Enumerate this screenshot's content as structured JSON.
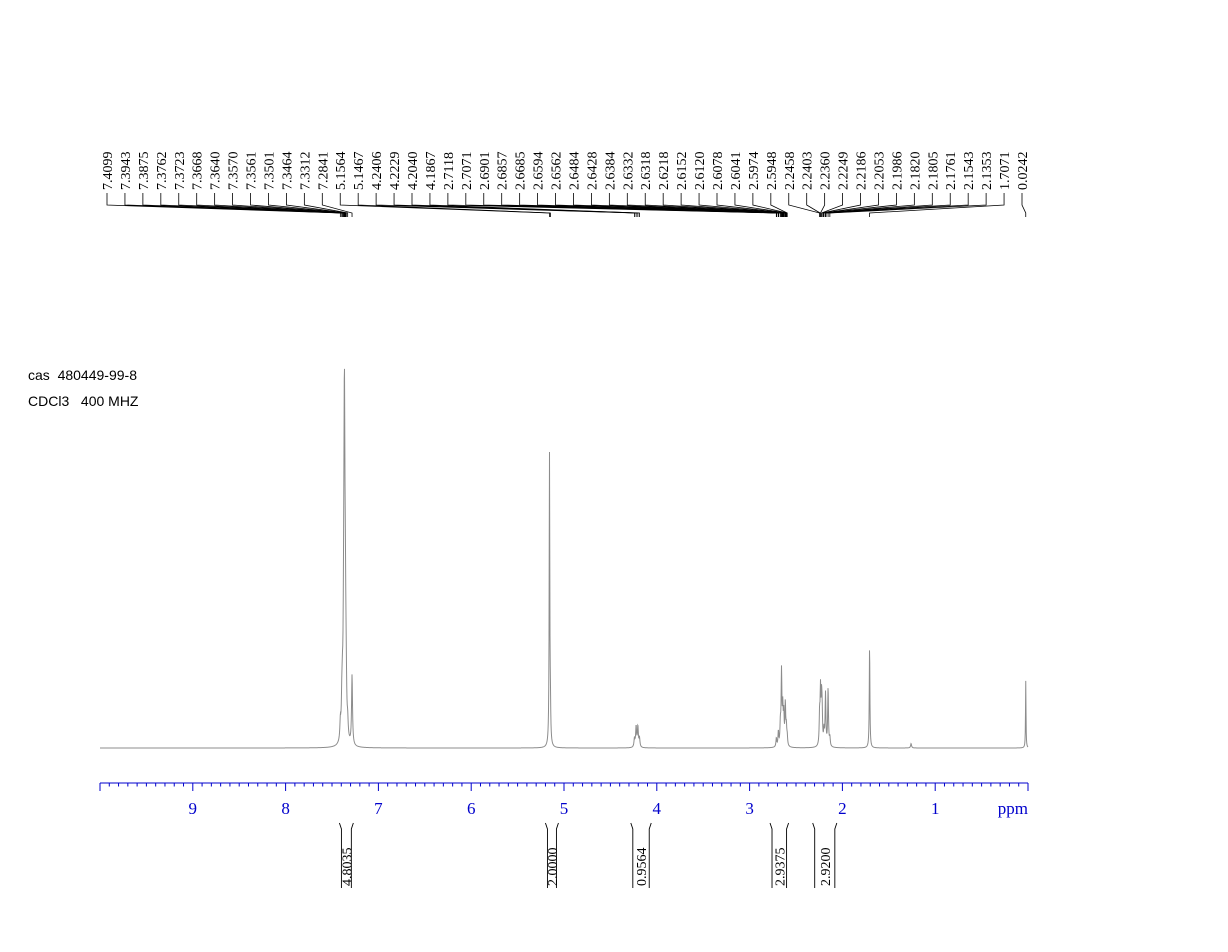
{
  "sample": {
    "cas_label": "cas",
    "cas_number": "480449-99-8",
    "solvent": "CDCl3",
    "frequency": "400 MHZ"
  },
  "chart_data": {
    "type": "line",
    "title": "",
    "xlabel": "ppm",
    "ylabel": "",
    "xlim": [
      10.0,
      0.0
    ],
    "x_reversed": true,
    "x_ticks": [
      9,
      8,
      7,
      6,
      5,
      4,
      3,
      2,
      1
    ],
    "grid": false,
    "colors": {
      "spectrum": "#8c8c8c",
      "axis": "#0000cc",
      "peak_labels": "#000000"
    },
    "peak_list": [
      "7.4099",
      "7.3943",
      "7.3875",
      "7.3762",
      "7.3723",
      "7.3668",
      "7.3640",
      "7.3570",
      "7.3561",
      "7.3501",
      "7.3464",
      "7.3312",
      "7.2841",
      "5.1564",
      "5.1467",
      "4.2406",
      "4.2229",
      "4.2040",
      "4.1867",
      "2.7118",
      "2.7071",
      "2.6901",
      "2.6857",
      "2.6685",
      "2.6594",
      "2.6562",
      "2.6484",
      "2.6428",
      "2.6384",
      "2.6332",
      "2.6318",
      "2.6218",
      "2.6152",
      "2.6120",
      "2.6078",
      "2.6041",
      "2.5974",
      "2.5948",
      "2.2458",
      "2.2403",
      "2.2360",
      "2.2249",
      "2.2186",
      "2.2053",
      "2.1986",
      "2.1820",
      "2.1805",
      "2.1761",
      "2.1543",
      "2.1353",
      "1.7071",
      "0.0242"
    ],
    "integrals": [
      {
        "from": 7.42,
        "to": 7.27,
        "value": "4.8035"
      },
      {
        "from": 5.2,
        "to": 5.06,
        "value": "2.0000"
      },
      {
        "from": 4.28,
        "to": 4.06,
        "value": "0.9564"
      },
      {
        "from": 2.78,
        "to": 2.58,
        "value": "2.9375"
      },
      {
        "from": 2.32,
        "to": 2.06,
        "value": "2.9200"
      }
    ],
    "series": [
      {
        "peaks": [
          {
            "ppm": 7.4099,
            "h": 0.06,
            "w": 0.006
          },
          {
            "ppm": 7.3943,
            "h": 0.1,
            "w": 0.006
          },
          {
            "ppm": 7.3875,
            "h": 0.12,
            "w": 0.006
          },
          {
            "ppm": 7.3762,
            "h": 0.16,
            "w": 0.006
          },
          {
            "ppm": 7.3723,
            "h": 0.2,
            "w": 0.006
          },
          {
            "ppm": 7.3668,
            "h": 0.79,
            "w": 0.006
          },
          {
            "ppm": 7.364,
            "h": 0.3,
            "w": 0.006
          },
          {
            "ppm": 7.357,
            "h": 0.18,
            "w": 0.006
          },
          {
            "ppm": 7.3561,
            "h": 0.16,
            "w": 0.006
          },
          {
            "ppm": 7.3501,
            "h": 0.1,
            "w": 0.006
          },
          {
            "ppm": 7.3464,
            "h": 0.08,
            "w": 0.006
          },
          {
            "ppm": 7.3312,
            "h": 0.05,
            "w": 0.006
          },
          {
            "ppm": 7.2841,
            "h": 0.24,
            "w": 0.006
          },
          {
            "ppm": 5.1564,
            "h": 1.0,
            "w": 0.004
          },
          {
            "ppm": 5.1467,
            "h": 0.1,
            "w": 0.004
          },
          {
            "ppm": 4.2406,
            "h": 0.03,
            "w": 0.006
          },
          {
            "ppm": 4.2229,
            "h": 0.07,
            "w": 0.006
          },
          {
            "ppm": 4.204,
            "h": 0.07,
            "w": 0.006
          },
          {
            "ppm": 4.1867,
            "h": 0.03,
            "w": 0.006
          },
          {
            "ppm": 2.7118,
            "h": 0.03,
            "w": 0.005
          },
          {
            "ppm": 2.6901,
            "h": 0.05,
            "w": 0.005
          },
          {
            "ppm": 2.6685,
            "h": 0.07,
            "w": 0.005
          },
          {
            "ppm": 2.6562,
            "h": 0.25,
            "w": 0.005
          },
          {
            "ppm": 2.6428,
            "h": 0.12,
            "w": 0.005
          },
          {
            "ppm": 2.6318,
            "h": 0.1,
            "w": 0.005
          },
          {
            "ppm": 2.6152,
            "h": 0.14,
            "w": 0.005
          },
          {
            "ppm": 2.6041,
            "h": 0.06,
            "w": 0.005
          },
          {
            "ppm": 2.5948,
            "h": 0.03,
            "w": 0.005
          },
          {
            "ppm": 2.2458,
            "h": 0.1,
            "w": 0.005
          },
          {
            "ppm": 2.236,
            "h": 0.18,
            "w": 0.005
          },
          {
            "ppm": 2.2249,
            "h": 0.14,
            "w": 0.005
          },
          {
            "ppm": 2.2186,
            "h": 0.1,
            "w": 0.005
          },
          {
            "ppm": 2.1986,
            "h": 0.05,
            "w": 0.005
          },
          {
            "ppm": 2.182,
            "h": 0.18,
            "w": 0.005
          },
          {
            "ppm": 2.1543,
            "h": 0.2,
            "w": 0.005
          },
          {
            "ppm": 2.1353,
            "h": 0.03,
            "w": 0.005
          },
          {
            "ppm": 1.7071,
            "h": 0.35,
            "w": 0.004
          },
          {
            "ppm": 1.26,
            "h": 0.015,
            "w": 0.006
          },
          {
            "ppm": 0.0242,
            "h": 0.23,
            "w": 0.003
          }
        ]
      }
    ]
  }
}
